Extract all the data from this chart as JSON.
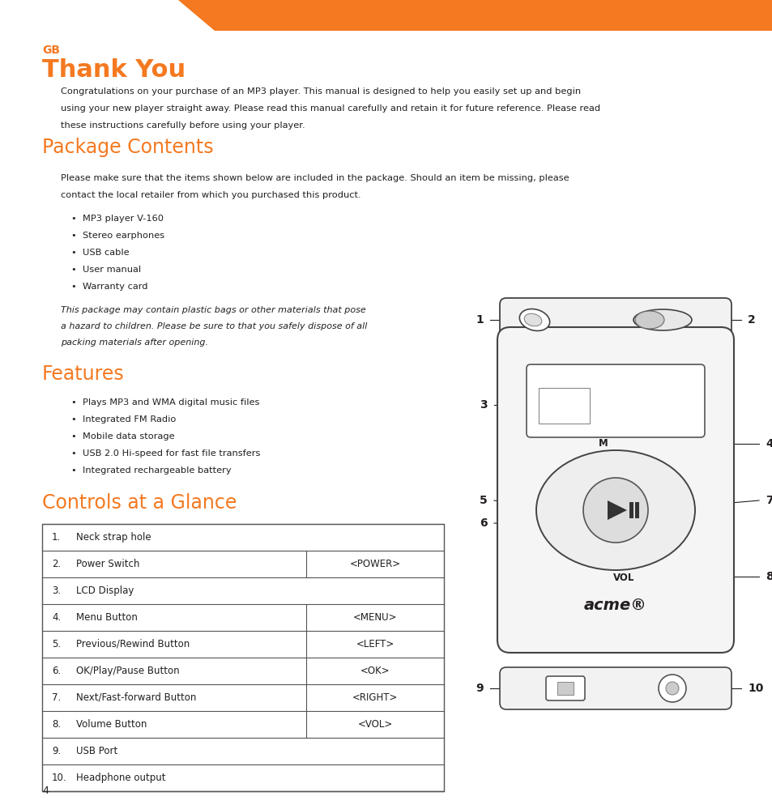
{
  "bg_color": "#ffffff",
  "orange_color": "#f47920",
  "text_color": "#231f20",
  "gb_label": "GB",
  "thank_you": "Thank You",
  "intro_text": "Congratulations on your purchase of an MP3 player. This manual is designed to help you easily set up and begin\nusing your new player straight away. Please read this manual carefully and retain it for future reference. Please read\nthese instructions carefully before using your player.",
  "package_title": "Package Contents",
  "package_intro": "Please make sure that the items shown below are included in the package. Should an item be missing, please\ncontact the local retailer from which you purchased this product.",
  "package_items": [
    "MP3 player V-160",
    "Stereo earphones",
    "USB cable",
    "User manual",
    "Warranty card"
  ],
  "package_warning": "This package may contain plastic bags or other materials that pose\na hazard to children. Please be sure to that you safely dispose of all\npacking materials after opening.",
  "features_title": "Features",
  "features_items": [
    "Plays MP3 and WMA digital music files",
    "Integrated FM Radio",
    "Mobile data storage",
    "USB 2.0 Hi-speed for fast file transfers",
    "Integrated rechargeable battery"
  ],
  "controls_title": "Controls at a Glance",
  "table_rows": [
    {
      "num": "1.",
      "label": "Neck strap hole",
      "cmd": ""
    },
    {
      "num": "2.",
      "label": "Power Switch",
      "cmd": "<POWER>"
    },
    {
      "num": "3.",
      "label": "LCD Display",
      "cmd": ""
    },
    {
      "num": "4.",
      "label": "Menu Button",
      "cmd": "<MENU>"
    },
    {
      "num": "5.",
      "label": "Previous/Rewind Button",
      "cmd": "<LEFT>"
    },
    {
      "num": "6.",
      "label": "OK/Play/Pause Button",
      "cmd": "<OK>"
    },
    {
      "num": "7.",
      "label": "Next/Fast-forward Button",
      "cmd": "<RIGHT>"
    },
    {
      "num": "8.",
      "label": "Volume Button",
      "cmd": "<VOL>"
    },
    {
      "num": "9.",
      "label": "USB Port",
      "cmd": ""
    },
    {
      "num": "10.",
      "label": "Headphone output",
      "cmd": ""
    }
  ],
  "page_number": "4"
}
